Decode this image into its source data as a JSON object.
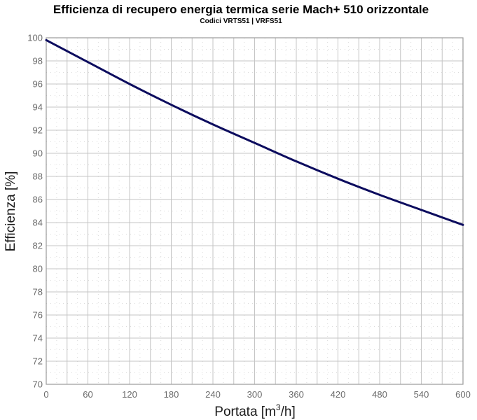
{
  "chart_data": {
    "type": "line",
    "title": "Efficienza di recupero energia termica serie Mach+ 510 orizzontale",
    "subtitle": "Codici VRTS51  |  VRFS51",
    "xlabel": "Portata [m",
    "xlabel_sup": "3",
    "xlabel_tail": "/h]",
    "ylabel": "Efficienza [%]",
    "xlim": [
      0,
      600
    ],
    "ylim": [
      70,
      100
    ],
    "x_ticks": [
      "0",
      "60",
      "120",
      "180",
      "240",
      "300",
      "360",
      "420",
      "480",
      "540",
      "600"
    ],
    "y_ticks": [
      "70",
      "72",
      "74",
      "76",
      "78",
      "80",
      "82",
      "84",
      "86",
      "88",
      "90",
      "92",
      "94",
      "96",
      "98",
      "100"
    ],
    "grid": true,
    "legend": "none",
    "colors": {
      "line": "#0c0c5e",
      "grid": "#c4c4c4",
      "minor_grid": "#dcdcdc",
      "frame": "#9a9a9a"
    },
    "series": [
      {
        "x": [
          0,
          60,
          120,
          180,
          240,
          300,
          360,
          420,
          480,
          540,
          600
        ],
        "y": [
          99.8,
          97.9,
          96.0,
          94.2,
          92.5,
          90.9,
          89.3,
          87.8,
          86.4,
          85.1,
          83.8
        ]
      }
    ]
  }
}
